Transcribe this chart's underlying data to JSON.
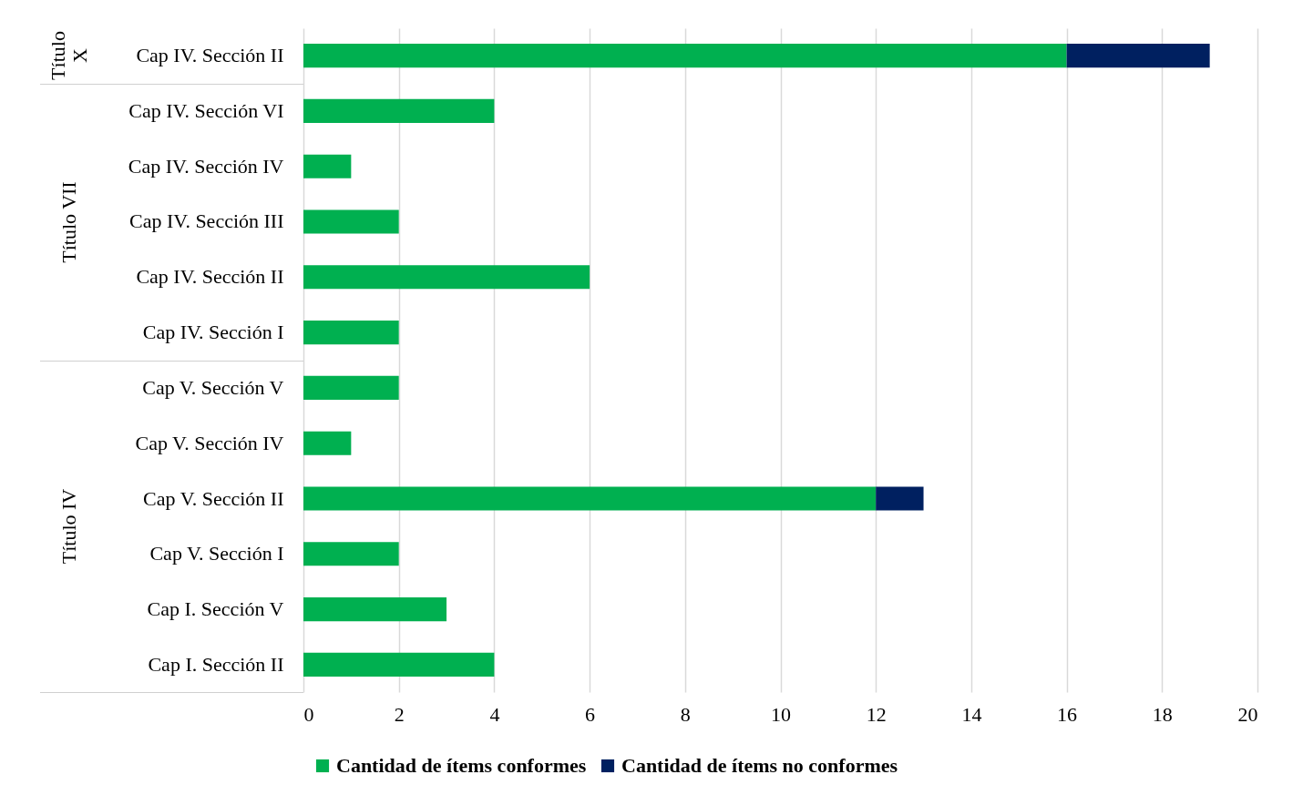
{
  "chart_data": {
    "type": "bar",
    "orientation": "horizontal",
    "stacked": true,
    "categories": [
      "Cap IV. Sección II",
      "Cap IV. Sección VI",
      "Cap IV. Sección IV",
      "Cap IV. Sección III",
      "Cap IV. Sección II",
      "Cap IV. Sección I",
      "Cap V. Sección V",
      "Cap V. Sección IV",
      "Cap V. Sección II",
      "Cap V. Sección I",
      "Cap I. Sección V",
      "Cap I. Sección II"
    ],
    "series": [
      {
        "name": "Cantidad de ítems conformes",
        "color": "#00b050",
        "values": [
          16,
          4,
          1,
          2,
          6,
          2,
          2,
          1,
          12,
          2,
          3,
          4
        ]
      },
      {
        "name": "Cantidad de ítems no conformes",
        "color": "#002060",
        "values": [
          3,
          null,
          null,
          null,
          null,
          null,
          null,
          null,
          1,
          null,
          null,
          null
        ]
      }
    ],
    "xlim": [
      0,
      20
    ],
    "xticks": [
      0,
      2,
      4,
      6,
      8,
      10,
      12,
      14,
      16,
      18,
      20
    ],
    "grid": "x",
    "legend": "bottom",
    "annotations": [
      "Título X",
      "Título VII",
      "Título IV"
    ]
  }
}
